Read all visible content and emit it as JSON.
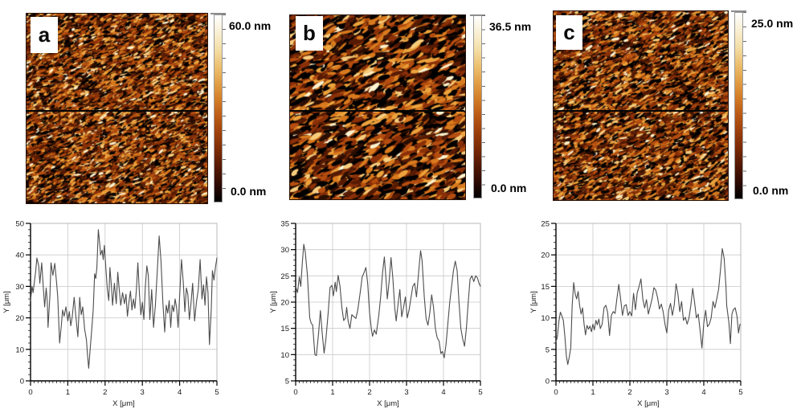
{
  "figure": {
    "description": "AFM topography images with height color scales and corresponding line profiles",
    "panels": [
      {
        "id": "a",
        "label": "a",
        "scale_max": "60.0 nm",
        "scale_min": "0.0 nm"
      },
      {
        "id": "b",
        "label": "b",
        "scale_max": "36.5 nm",
        "scale_min": "0.0 nm"
      },
      {
        "id": "c",
        "label": "c",
        "scale_max": "25.0 nm",
        "scale_min": "0.0 nm"
      }
    ],
    "colorbar_gradient": [
      "#ffffff",
      "#f9f0d4",
      "#f4dfa8",
      "#edc172",
      "#e2a047",
      "#d37d27",
      "#bb5a15",
      "#9c3f0b",
      "#7a2a05",
      "#531803",
      "#2e0a01",
      "#000000"
    ],
    "texture_palette": [
      "#000000",
      "#2b0e02",
      "#571b04",
      "#8a3008",
      "#b54d10",
      "#d97a1e",
      "#eda33c",
      "#f7cd7d",
      "#fdf3cf"
    ]
  },
  "chart_data": [
    {
      "type": "line",
      "title": "",
      "series_name": "height profile a",
      "xlabel": "X [μm]",
      "ylabel": "Y [μm]",
      "xlim": [
        0,
        5
      ],
      "ylim": [
        0,
        50
      ],
      "xticks": [
        0,
        1,
        2,
        3,
        4,
        5
      ],
      "yticks": [
        0,
        10,
        20,
        30,
        40,
        50
      ],
      "xminor": 0.1,
      "yminor": 2,
      "grid": true,
      "line_color": "#4d4d4d",
      "points": [
        [
          0,
          25.5
        ],
        [
          0.04,
          30
        ],
        [
          0.07,
          28
        ],
        [
          0.1,
          31
        ],
        [
          0.14,
          35
        ],
        [
          0.17,
          39
        ],
        [
          0.22,
          36.5
        ],
        [
          0.25,
          31
        ],
        [
          0.3,
          37.5
        ],
        [
          0.34,
          30
        ],
        [
          0.38,
          23.5
        ],
        [
          0.42,
          29.5
        ],
        [
          0.45,
          25
        ],
        [
          0.47,
          17
        ],
        [
          0.52,
          27
        ],
        [
          0.55,
          37.5
        ],
        [
          0.6,
          33.5
        ],
        [
          0.65,
          37.3
        ],
        [
          0.7,
          31
        ],
        [
          0.73,
          26.5
        ],
        [
          0.78,
          12
        ],
        [
          0.83,
          18
        ],
        [
          0.86,
          22.5
        ],
        [
          0.9,
          20.5
        ],
        [
          0.95,
          23.5
        ],
        [
          1,
          19
        ],
        [
          1.04,
          22
        ],
        [
          1.08,
          17.5
        ],
        [
          1.12,
          20.5
        ],
        [
          1.17,
          26.5
        ],
        [
          1.22,
          20
        ],
        [
          1.27,
          14
        ],
        [
          1.32,
          26.5
        ],
        [
          1.36,
          21
        ],
        [
          1.4,
          23.5
        ],
        [
          1.45,
          16.5
        ],
        [
          1.5,
          13
        ],
        [
          1.53,
          8
        ],
        [
          1.56,
          4
        ],
        [
          1.6,
          10
        ],
        [
          1.64,
          16
        ],
        [
          1.68,
          22.5
        ],
        [
          1.72,
          34
        ],
        [
          1.75,
          32.5
        ],
        [
          1.78,
          36
        ],
        [
          1.82,
          48
        ],
        [
          1.86,
          43
        ],
        [
          1.88,
          40
        ],
        [
          1.92,
          41.5
        ],
        [
          1.95,
          38.5
        ],
        [
          1.98,
          43
        ],
        [
          2.02,
          36
        ],
        [
          2.06,
          29
        ],
        [
          2.1,
          25.5
        ],
        [
          2.13,
          36
        ],
        [
          2.17,
          30
        ],
        [
          2.2,
          24
        ],
        [
          2.25,
          31
        ],
        [
          2.3,
          24.5
        ],
        [
          2.34,
          34.5
        ],
        [
          2.38,
          29
        ],
        [
          2.42,
          24
        ],
        [
          2.47,
          28
        ],
        [
          2.52,
          24.5
        ],
        [
          2.56,
          27.5
        ],
        [
          2.6,
          20.5
        ],
        [
          2.64,
          25
        ],
        [
          2.68,
          28.5
        ],
        [
          2.72,
          22.5
        ],
        [
          2.76,
          26
        ],
        [
          2.8,
          23
        ],
        [
          2.84,
          29
        ],
        [
          2.88,
          37.5
        ],
        [
          2.92,
          28
        ],
        [
          2.96,
          21
        ],
        [
          3,
          25
        ],
        [
          3.04,
          19.5
        ],
        [
          3.08,
          30
        ],
        [
          3.12,
          36.5
        ],
        [
          3.16,
          33.5
        ],
        [
          3.2,
          19.5
        ],
        [
          3.25,
          29
        ],
        [
          3.3,
          17
        ],
        [
          3.35,
          24
        ],
        [
          3.4,
          35
        ],
        [
          3.45,
          46
        ],
        [
          3.5,
          38
        ],
        [
          3.55,
          25
        ],
        [
          3.6,
          15.5
        ],
        [
          3.64,
          24
        ],
        [
          3.68,
          21.5
        ],
        [
          3.72,
          25.5
        ],
        [
          3.76,
          17
        ],
        [
          3.8,
          24
        ],
        [
          3.84,
          22
        ],
        [
          3.88,
          26
        ],
        [
          3.92,
          23
        ],
        [
          3.96,
          17
        ],
        [
          4,
          27
        ],
        [
          4.05,
          38.5
        ],
        [
          4.1,
          31
        ],
        [
          4.14,
          22
        ],
        [
          4.18,
          29.5
        ],
        [
          4.22,
          27.5
        ],
        [
          4.26,
          19.5
        ],
        [
          4.3,
          24
        ],
        [
          4.35,
          31
        ],
        [
          4.4,
          19
        ],
        [
          4.45,
          25
        ],
        [
          4.5,
          29
        ],
        [
          4.55,
          38.5
        ],
        [
          4.6,
          26
        ],
        [
          4.64,
          30.5
        ],
        [
          4.68,
          24
        ],
        [
          4.72,
          33
        ],
        [
          4.76,
          28
        ],
        [
          4.8,
          11.5
        ],
        [
          4.85,
          23
        ],
        [
          4.88,
          35
        ],
        [
          4.92,
          32
        ],
        [
          4.96,
          36
        ],
        [
          5,
          39
        ]
      ]
    },
    {
      "type": "line",
      "title": "",
      "series_name": "height profile b",
      "xlabel": "X [μm]",
      "ylabel": "Y [μm]",
      "xlim": [
        0,
        5
      ],
      "ylim": [
        5,
        35
      ],
      "xticks": [
        0,
        1,
        2,
        3,
        4,
        5
      ],
      "yticks": [
        5,
        10,
        15,
        20,
        25,
        30,
        35
      ],
      "xminor": 0.1,
      "yminor": 1,
      "grid": true,
      "line_color": "#4d4d4d",
      "points": [
        [
          0,
          23
        ],
        [
          0.05,
          21.8
        ],
        [
          0.1,
          24.8
        ],
        [
          0.14,
          23
        ],
        [
          0.18,
          27.5
        ],
        [
          0.22,
          31
        ],
        [
          0.26,
          29.5
        ],
        [
          0.32,
          25
        ],
        [
          0.38,
          17
        ],
        [
          0.42,
          16
        ],
        [
          0.46,
          15.6
        ],
        [
          0.52,
          10
        ],
        [
          0.56,
          9.8
        ],
        [
          0.62,
          14
        ],
        [
          0.67,
          18.4
        ],
        [
          0.72,
          14
        ],
        [
          0.77,
          10.3
        ],
        [
          0.82,
          13
        ],
        [
          0.88,
          18
        ],
        [
          0.93,
          22.8
        ],
        [
          0.98,
          23.2
        ],
        [
          1.02,
          21.2
        ],
        [
          1.07,
          23.8
        ],
        [
          1.1,
          22
        ],
        [
          1.15,
          25.1
        ],
        [
          1.2,
          23
        ],
        [
          1.25,
          19
        ],
        [
          1.3,
          16.5
        ],
        [
          1.35,
          17
        ],
        [
          1.38,
          19
        ],
        [
          1.42,
          16.4
        ],
        [
          1.47,
          15
        ],
        [
          1.52,
          17.6
        ],
        [
          1.58,
          17.2
        ],
        [
          1.63,
          16.9
        ],
        [
          1.68,
          18.5
        ],
        [
          1.75,
          22
        ],
        [
          1.8,
          24.8
        ],
        [
          1.85,
          25.6
        ],
        [
          1.9,
          26.6
        ],
        [
          1.95,
          23.5
        ],
        [
          2,
          18
        ],
        [
          2.05,
          14.8
        ],
        [
          2.08,
          13.5
        ],
        [
          2.13,
          14.7
        ],
        [
          2.18,
          13.9
        ],
        [
          2.25,
          17.5
        ],
        [
          2.3,
          21
        ],
        [
          2.35,
          25.5
        ],
        [
          2.4,
          28.6
        ],
        [
          2.44,
          25
        ],
        [
          2.48,
          20.6
        ],
        [
          2.53,
          24
        ],
        [
          2.58,
          28.5
        ],
        [
          2.63,
          24.5
        ],
        [
          2.68,
          19
        ],
        [
          2.72,
          16.4
        ],
        [
          2.77,
          19.5
        ],
        [
          2.82,
          22.4
        ],
        [
          2.87,
          17.2
        ],
        [
          2.92,
          19
        ],
        [
          2.97,
          21
        ],
        [
          3.02,
          17
        ],
        [
          3.07,
          18.5
        ],
        [
          3.12,
          20.8
        ],
        [
          3.17,
          23
        ],
        [
          3.22,
          23.6
        ],
        [
          3.27,
          21
        ],
        [
          3.32,
          25
        ],
        [
          3.38,
          29.8
        ],
        [
          3.42,
          28
        ],
        [
          3.48,
          21
        ],
        [
          3.53,
          16.8
        ],
        [
          3.58,
          15.6
        ],
        [
          3.63,
          18
        ],
        [
          3.68,
          21.4
        ],
        [
          3.73,
          19
        ],
        [
          3.78,
          15
        ],
        [
          3.83,
          13.2
        ],
        [
          3.88,
          12.6
        ],
        [
          3.93,
          10.2
        ],
        [
          3.97,
          10.6
        ],
        [
          4.02,
          9.4
        ],
        [
          4.07,
          12
        ],
        [
          4.12,
          16
        ],
        [
          4.17,
          20
        ],
        [
          4.22,
          23
        ],
        [
          4.27,
          26
        ],
        [
          4.32,
          27.8
        ],
        [
          4.37,
          26
        ],
        [
          4.42,
          20
        ],
        [
          4.47,
          15
        ],
        [
          4.52,
          13
        ],
        [
          4.57,
          11.6
        ],
        [
          4.62,
          15
        ],
        [
          4.67,
          20
        ],
        [
          4.72,
          24.4
        ],
        [
          4.77,
          25
        ],
        [
          4.82,
          23.9
        ],
        [
          4.87,
          25
        ],
        [
          4.92,
          24.6
        ],
        [
          4.96,
          23.6
        ],
        [
          5,
          23
        ]
      ]
    },
    {
      "type": "line",
      "title": "",
      "series_name": "height profile c",
      "xlabel": "X [μm]",
      "ylabel": "Y [μm]",
      "xlim": [
        0,
        5
      ],
      "ylim": [
        0,
        25
      ],
      "xticks": [
        0,
        1,
        2,
        3,
        4,
        5
      ],
      "yticks": [
        0,
        5,
        10,
        15,
        20,
        25
      ],
      "xminor": 0.1,
      "yminor": 1,
      "grid": true,
      "line_color": "#4d4d4d",
      "points": [
        [
          0,
          6.2
        ],
        [
          0.04,
          7
        ],
        [
          0.08,
          9.5
        ],
        [
          0.12,
          10.9
        ],
        [
          0.16,
          10.3
        ],
        [
          0.2,
          9.6
        ],
        [
          0.24,
          7.2
        ],
        [
          0.28,
          4
        ],
        [
          0.32,
          2.6
        ],
        [
          0.36,
          3.8
        ],
        [
          0.4,
          5.2
        ],
        [
          0.44,
          12
        ],
        [
          0.48,
          15.6
        ],
        [
          0.52,
          13.8
        ],
        [
          0.56,
          13
        ],
        [
          0.6,
          14.2
        ],
        [
          0.64,
          12
        ],
        [
          0.68,
          10.6
        ],
        [
          0.72,
          11.6
        ],
        [
          0.76,
          9
        ],
        [
          0.8,
          7.3
        ],
        [
          0.84,
          8.8
        ],
        [
          0.88,
          8.2
        ],
        [
          0.92,
          8.7
        ],
        [
          0.96,
          7.8
        ],
        [
          1,
          9
        ],
        [
          1.04,
          8.1
        ],
        [
          1.08,
          9.6
        ],
        [
          1.12,
          8.9
        ],
        [
          1.16,
          9.8
        ],
        [
          1.2,
          8.3
        ],
        [
          1.25,
          9
        ],
        [
          1.3,
          11.6
        ],
        [
          1.35,
          12
        ],
        [
          1.4,
          10.8
        ],
        [
          1.45,
          7.2
        ],
        [
          1.5,
          10.4
        ],
        [
          1.55,
          11
        ],
        [
          1.6,
          10.7
        ],
        [
          1.65,
          13.1
        ],
        [
          1.7,
          15.3
        ],
        [
          1.75,
          13
        ],
        [
          1.8,
          10.4
        ],
        [
          1.85,
          11.9
        ],
        [
          1.9,
          12.1
        ],
        [
          1.95,
          10.4
        ],
        [
          2,
          11
        ],
        [
          2.05,
          10.3
        ],
        [
          2.1,
          13.9
        ],
        [
          2.15,
          11.3
        ],
        [
          2.2,
          14
        ],
        [
          2.25,
          15
        ],
        [
          2.3,
          16.2
        ],
        [
          2.35,
          13
        ],
        [
          2.4,
          11.6
        ],
        [
          2.45,
          12.9
        ],
        [
          2.5,
          10.6
        ],
        [
          2.55,
          11.8
        ],
        [
          2.6,
          13
        ],
        [
          2.65,
          14.8
        ],
        [
          2.7,
          14.4
        ],
        [
          2.75,
          13.2
        ],
        [
          2.8,
          11.4
        ],
        [
          2.85,
          12.2
        ],
        [
          2.9,
          11
        ],
        [
          2.95,
          9
        ],
        [
          3,
          7.6
        ],
        [
          3.05,
          11.2
        ],
        [
          3.1,
          12.3
        ],
        [
          3.15,
          10.4
        ],
        [
          3.2,
          12
        ],
        [
          3.25,
          15.4
        ],
        [
          3.3,
          13.8
        ],
        [
          3.35,
          11
        ],
        [
          3.4,
          12.6
        ],
        [
          3.45,
          9.6
        ],
        [
          3.5,
          10.1
        ],
        [
          3.55,
          9
        ],
        [
          3.6,
          10
        ],
        [
          3.65,
          12
        ],
        [
          3.7,
          14.7
        ],
        [
          3.75,
          12.5
        ],
        [
          3.8,
          10
        ],
        [
          3.85,
          10.6
        ],
        [
          3.9,
          8
        ],
        [
          3.95,
          5.2
        ],
        [
          4,
          9.2
        ],
        [
          4.05,
          11.2
        ],
        [
          4.1,
          8.6
        ],
        [
          4.15,
          9
        ],
        [
          4.2,
          10
        ],
        [
          4.25,
          12.6
        ],
        [
          4.3,
          11.6
        ],
        [
          4.35,
          13
        ],
        [
          4.4,
          14.5
        ],
        [
          4.45,
          17.5
        ],
        [
          4.5,
          21
        ],
        [
          4.55,
          19.5
        ],
        [
          4.6,
          15
        ],
        [
          4.62,
          12
        ],
        [
          4.68,
          9.2
        ],
        [
          4.72,
          5.9
        ],
        [
          4.76,
          10.6
        ],
        [
          4.8,
          11.3
        ],
        [
          4.85,
          11.6
        ],
        [
          4.9,
          10.2
        ],
        [
          4.94,
          7.6
        ],
        [
          4.98,
          9
        ]
      ]
    }
  ]
}
